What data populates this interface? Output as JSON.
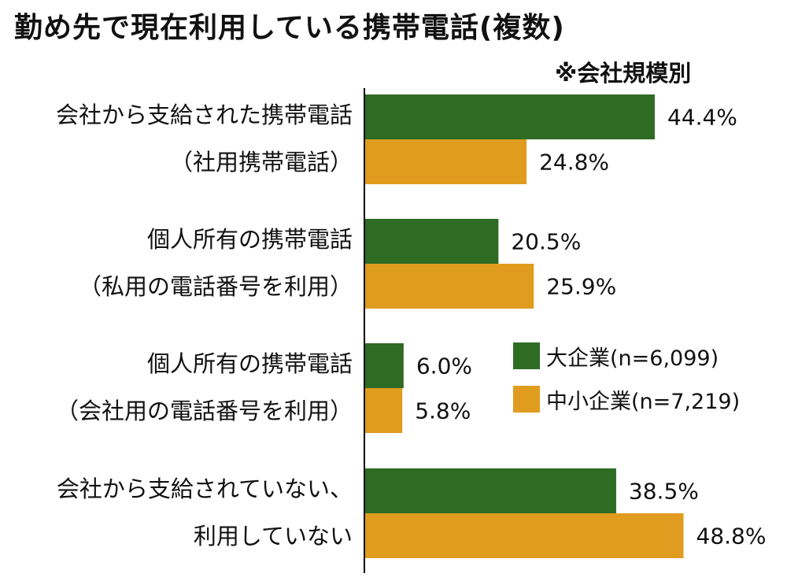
{
  "title": "勤め先で現在利用している携帯電話(複数)",
  "note": "※会社規模別",
  "colors": {
    "large": "#2e6b23",
    "small": "#e09c1f",
    "axis": "#000000"
  },
  "legend": {
    "large": "大企業(n=6,099)",
    "small": "中小企業(n=7,219)"
  },
  "chart_data": {
    "type": "bar",
    "orientation": "horizontal",
    "title": "勤め先で現在利用している携帯電話(複数)",
    "categories": [
      {
        "line1": "会社から支給された携帯電話",
        "line2": "（社用携帯電話）"
      },
      {
        "line1": "個人所有の携帯電話",
        "line2": "（私用の電話番号を利用）"
      },
      {
        "line1": "個人所有の携帯電話",
        "line2": "（会社用の電話番号を利用）"
      },
      {
        "line1": "会社から支給されていない、",
        "line2": "利用していない"
      }
    ],
    "series": [
      {
        "name": "大企業(n=6,099)",
        "values": [
          44.4,
          20.5,
          6.0,
          38.5
        ],
        "labels": [
          "44.4%",
          "20.5%",
          "6.0%",
          "38.5%"
        ]
      },
      {
        "name": "中小企業(n=7,219)",
        "values": [
          24.8,
          25.9,
          5.8,
          48.8
        ],
        "labels": [
          "24.8%",
          "25.9%",
          "5.8%",
          "48.8%"
        ]
      }
    ],
    "xlim": [
      0,
      55
    ],
    "unit": "%",
    "grid": false,
    "legend_position": "right-middle"
  }
}
